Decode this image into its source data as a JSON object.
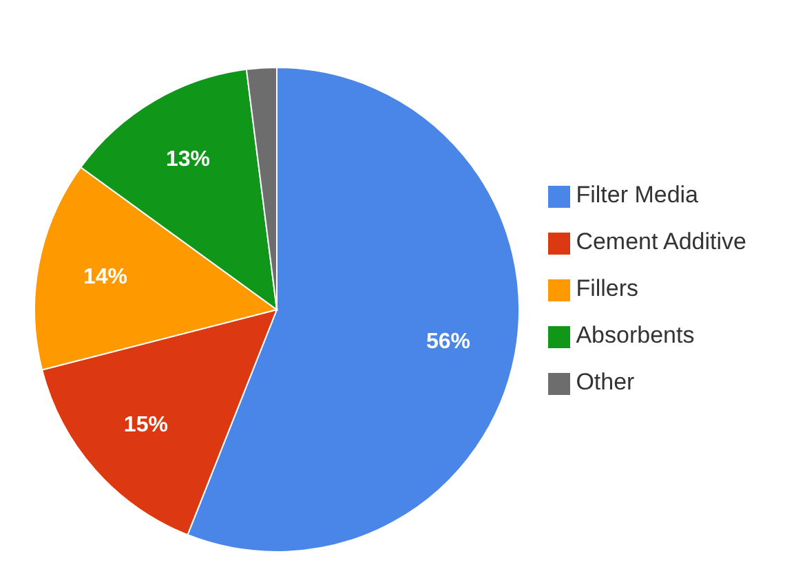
{
  "chart_data": {
    "type": "pie",
    "categories": [
      "Filter Media",
      "Cement Additive",
      "Fillers",
      "Absorbents",
      "Other"
    ],
    "values": [
      56,
      15,
      14,
      13,
      2
    ],
    "colors": [
      "#4a86e8",
      "#dc3912",
      "#ff9900",
      "#109618",
      "#6d6d6d"
    ],
    "value_labels": [
      "56%",
      "15%",
      "14%",
      "13%",
      null
    ],
    "legend": "right"
  }
}
